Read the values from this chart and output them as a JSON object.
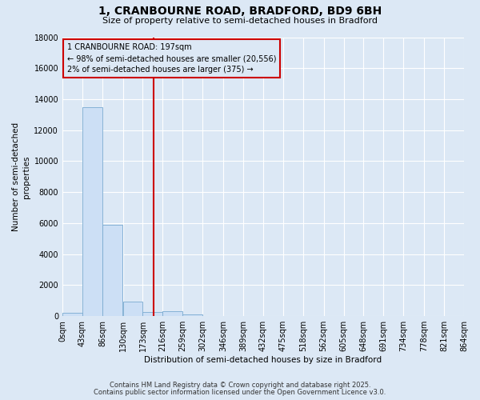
{
  "title": "1, CRANBOURNE ROAD, BRADFORD, BD9 6BH",
  "subtitle": "Size of property relative to semi-detached houses in Bradford",
  "xlabel": "Distribution of semi-detached houses by size in Bradford",
  "ylabel": "Number of semi-detached\nproperties",
  "footer1": "Contains HM Land Registry data © Crown copyright and database right 2025.",
  "footer2": "Contains public sector information licensed under the Open Government Licence v3.0.",
  "bin_edges": [
    0,
    43,
    86,
    130,
    173,
    216,
    259,
    302,
    346,
    389,
    432,
    475,
    518,
    562,
    605,
    648,
    691,
    734,
    778,
    821,
    864
  ],
  "bin_labels": [
    "0sqm",
    "43sqm",
    "86sqm",
    "130sqm",
    "173sqm",
    "216sqm",
    "259sqm",
    "302sqm",
    "346sqm",
    "389sqm",
    "432sqm",
    "475sqm",
    "518sqm",
    "562sqm",
    "605sqm",
    "648sqm",
    "691sqm",
    "734sqm",
    "778sqm",
    "821sqm",
    "864sqm"
  ],
  "bar_heights": [
    200,
    13500,
    5900,
    950,
    280,
    310,
    130,
    0,
    0,
    0,
    0,
    0,
    0,
    0,
    0,
    0,
    0,
    0,
    0,
    0
  ],
  "bar_color": "#ccdff5",
  "bar_edgecolor": "#7aaad0",
  "property_size": 197,
  "property_line_color": "#cc0000",
  "ylim": [
    0,
    18000
  ],
  "yticks": [
    0,
    2000,
    4000,
    6000,
    8000,
    10000,
    12000,
    14000,
    16000,
    18000
  ],
  "annotation_line1": "1 CRANBOURNE ROAD: 197sqm",
  "annotation_line2": "← 98% of semi-detached houses are smaller (20,556)",
  "annotation_line3": "2% of semi-detached houses are larger (375) →",
  "annotation_box_edgecolor": "#cc0000",
  "background_color": "#dce8f5",
  "grid_color": "#ffffff",
  "title_fontsize": 10,
  "subtitle_fontsize": 8,
  "axis_label_fontsize": 7.5,
  "tick_fontsize": 7,
  "annotation_fontsize": 7
}
